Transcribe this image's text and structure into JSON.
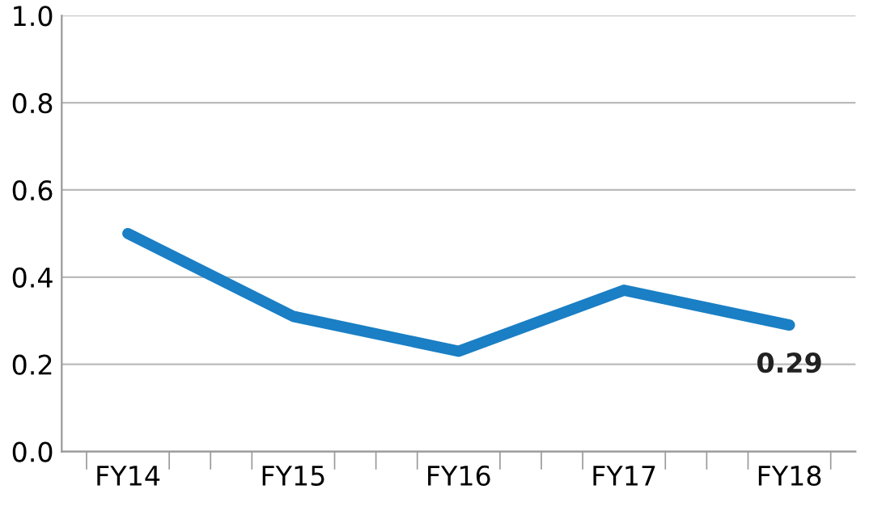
{
  "chart_data": {
    "type": "line",
    "categories": [
      "FY14",
      "FY15",
      "FY16",
      "FY17",
      "FY18"
    ],
    "series": [
      {
        "color": "#1a7fc4",
        "values": [
          0.5,
          0.31,
          0.23,
          0.37,
          0.29
        ],
        "value_labels": [
          null,
          null,
          null,
          null,
          "0.29"
        ]
      }
    ],
    "ylim": [
      0,
      1.0
    ],
    "yticks": [
      {
        "value": 0,
        "label": "0.0"
      },
      {
        "value": 0.2,
        "label": "0.2"
      },
      {
        "value": 0.4,
        "label": "0.4"
      },
      {
        "value": 0.6,
        "label": "0.6"
      },
      {
        "value": 0.8,
        "label": "0.8"
      },
      {
        "value": 1.0,
        "label": "1.0"
      }
    ],
    "grid": "y",
    "legend": false,
    "marker": "none",
    "line_style": "solid"
  }
}
